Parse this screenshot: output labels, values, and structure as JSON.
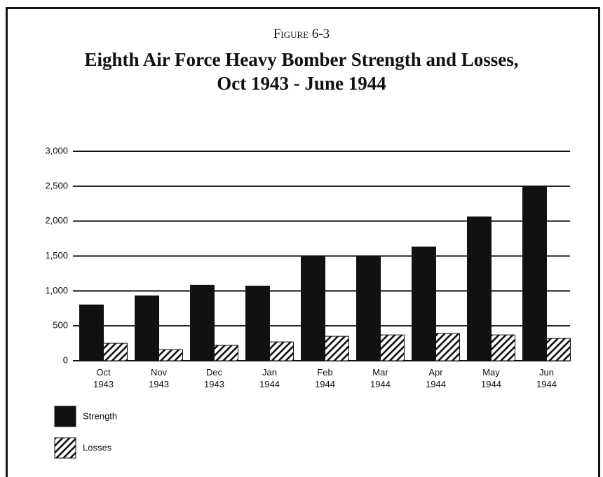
{
  "chart_data": {
    "type": "bar",
    "figure_label": "Figure 6-3",
    "title": [
      "Eighth Air Force Heavy Bomber Strength and Losses,",
      "Oct 1943 - June 1944"
    ],
    "categories": [
      "Oct 1943",
      "Nov 1943",
      "Dec 1943",
      "Jan 1944",
      "Feb 1944",
      "Mar 1944",
      "Apr 1944",
      "May 1944",
      "Jun 1944"
    ],
    "series": [
      {
        "name": "Strength",
        "color": "#111111",
        "pattern": "solid",
        "values": [
          800,
          930,
          1080,
          1070,
          1490,
          1490,
          1630,
          2060,
          2490
        ]
      },
      {
        "name": "Losses",
        "color": "#111111",
        "pattern": "hatch",
        "values": [
          250,
          160,
          220,
          270,
          350,
          370,
          390,
          370,
          320
        ]
      }
    ],
    "ylim": [
      0,
      3000
    ],
    "yticks": [
      0,
      500,
      {
        "value": 1000,
        "label": "1,000"
      },
      {
        "value": 1500,
        "label": "1,500"
      },
      {
        "value": 2000,
        "label": "2,000"
      },
      {
        "value": 2500,
        "label": "2,500"
      },
      {
        "value": 3000,
        "label": "3,000"
      }
    ],
    "grid": true,
    "legend": "bottom-left"
  }
}
